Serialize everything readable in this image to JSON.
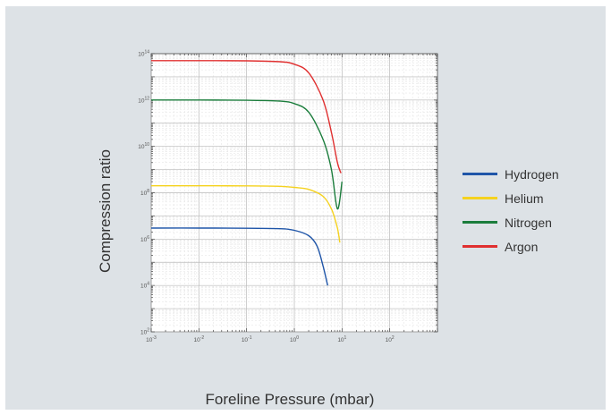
{
  "chart_data": {
    "type": "line",
    "xlabel": "Foreline Pressure (mbar)",
    "ylabel": "Compression ratio",
    "x_scale": "log",
    "y_scale": "log",
    "xlim": [
      0.001,
      1000
    ],
    "ylim": [
      100,
      100000000000000
    ],
    "x_ticks": [
      {
        "label": "10-3",
        "base": "10",
        "exp": "-3",
        "value": 0.001
      },
      {
        "label": "10-2",
        "base": "10",
        "exp": "-2",
        "value": 0.01
      },
      {
        "label": "10-1",
        "base": "10",
        "exp": "-1",
        "value": 0.1
      },
      {
        "label": "100",
        "base": "10",
        "exp": "0",
        "value": 1
      },
      {
        "label": "101",
        "base": "10",
        "exp": "1",
        "value": 10
      },
      {
        "label": "102",
        "base": "10",
        "exp": "2",
        "value": 100
      }
    ],
    "y_ticks": [
      {
        "label": "102",
        "base": "10",
        "exp": "2",
        "value": 100
      },
      {
        "label": "104",
        "base": "10",
        "exp": "4",
        "value": 10000
      },
      {
        "label": "106",
        "base": "10",
        "exp": "6",
        "value": 1000000
      },
      {
        "label": "108",
        "base": "10",
        "exp": "8",
        "value": 100000000
      },
      {
        "label": "1010",
        "base": "10",
        "exp": "10",
        "value": 10000000000
      },
      {
        "label": "1012",
        "base": "10",
        "exp": "12",
        "value": 1000000000000
      },
      {
        "label": "1014",
        "base": "10",
        "exp": "14",
        "value": 100000000000000
      }
    ],
    "grid": true,
    "legend_position": "right",
    "series": [
      {
        "name": "Hydrogen",
        "color": "#1f55a8",
        "x": [
          0.001,
          0.01,
          0.1,
          0.5,
          1,
          2,
          3,
          4,
          5
        ],
        "y": [
          3000000,
          3000000,
          2950000,
          2800000,
          2400000,
          1400000,
          500000,
          70000,
          10000
        ]
      },
      {
        "name": "Helium",
        "color": "#f5d21f",
        "x": [
          0.001,
          0.01,
          0.1,
          0.5,
          1,
          2,
          4,
          6,
          8,
          9
        ],
        "y": [
          200000000,
          200000000,
          198000000,
          190000000,
          170000000,
          140000000,
          70000000,
          20000000,
          3000000,
          700000
        ]
      },
      {
        "name": "Nitrogen",
        "color": "#1b7d3c",
        "x": [
          0.001,
          0.01,
          0.1,
          0.5,
          1,
          2,
          4,
          6,
          8,
          10
        ],
        "y": [
          1000000000000,
          1000000000000,
          980000000000,
          900000000000,
          700000000000,
          300000000000,
          20000000000,
          1000000000,
          20000000,
          300000000
        ]
      },
      {
        "name": "Argon",
        "color": "#e03030",
        "x": [
          0.001,
          0.01,
          0.1,
          0.5,
          1,
          2,
          4,
          6,
          8,
          9.5
        ],
        "y": [
          50000000000000,
          50000000000000,
          49000000000000,
          45000000000000,
          35000000000000,
          15000000000000,
          1000000000000,
          40000000000,
          2000000000,
          700000000
        ]
      }
    ]
  }
}
